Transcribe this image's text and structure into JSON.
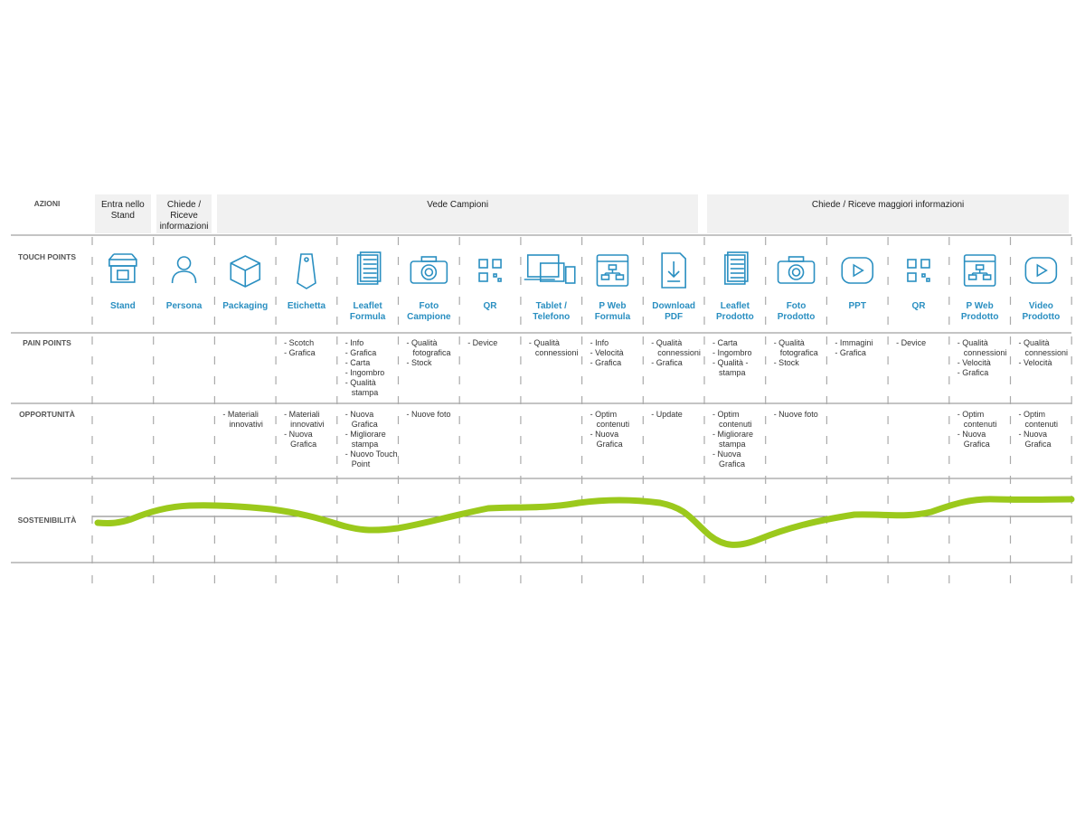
{
  "row_labels": {
    "actions": "AZIONI",
    "touch_points": "TOUCH POINTS",
    "pain_points": "PAIN POINTS",
    "opportunities": "OPPORTUNITÀ",
    "sustainability": "SOSTENIBILITÀ"
  },
  "actions": [
    "Entra nello Stand",
    "Chiede / Riceve informazioni",
    "Vede Campioni",
    "Chiede / Riceve maggiori informazioni"
  ],
  "columns": [
    {
      "touch_point": "Stand",
      "pain_points": [],
      "opportunities": []
    },
    {
      "touch_point": "Persona",
      "pain_points": [],
      "opportunities": []
    },
    {
      "touch_point": "Packaging",
      "pain_points": [],
      "opportunities": [
        "- Materiali innovativi"
      ]
    },
    {
      "touch_point": "Etichetta",
      "pain_points": [
        "- Scotch",
        "- Grafica"
      ],
      "opportunities": [
        "- Materiali innovativi",
        "- Nuova Grafica"
      ]
    },
    {
      "touch_point": "Leaflet Formula",
      "pain_points": [
        "- Info",
        "- Grafica",
        "- Carta",
        "- Ingombro",
        "- Qualità stampa"
      ],
      "opportunities": [
        "- Nuova Grafica",
        "- Migliorare stampa",
        "- Nuovo Touch Point"
      ]
    },
    {
      "touch_point": "Foto Campione",
      "pain_points": [
        "- Qualità fotografica",
        "- Stock"
      ],
      "opportunities": [
        "- Nuove foto"
      ]
    },
    {
      "touch_point": "QR",
      "pain_points": [
        "- Device"
      ],
      "opportunities": []
    },
    {
      "touch_point": "Tablet / Telefono",
      "pain_points": [
        "- Qualità connessioni"
      ],
      "opportunities": []
    },
    {
      "touch_point": "P Web Formula",
      "pain_points": [
        "- Info",
        "- Velocità",
        "- Grafica"
      ],
      "opportunities": [
        "- Optim contenuti",
        "- Nuova Grafica"
      ]
    },
    {
      "touch_point": "Download PDF",
      "pain_points": [
        "- Qualità connessioni",
        "- Grafica"
      ],
      "opportunities": [
        "- Update"
      ]
    },
    {
      "touch_point": "Leaflet Prodotto",
      "pain_points": [
        "- Carta",
        "- Ingombro",
        "- Qualità -stampa"
      ],
      "opportunities": [
        "- Optim contenuti",
        "- Migliorare stampa",
        "- Nuova Grafica"
      ]
    },
    {
      "touch_point": "Foto Prodotto",
      "pain_points": [
        "- Qualità fotografica",
        "- Stock"
      ],
      "opportunities": [
        "- Nuove foto"
      ]
    },
    {
      "touch_point": "PPT",
      "pain_points": [
        "- Immagini",
        "- Grafica"
      ],
      "opportunities": []
    },
    {
      "touch_point": "QR",
      "pain_points": [
        "- Device"
      ],
      "opportunities": []
    },
    {
      "touch_point": "P Web Prodotto",
      "pain_points": [
        "- Qualità connessioni",
        "- Velocità",
        "- Grafica"
      ],
      "opportunities": [
        "- Optim contenuti",
        "- Nuova Grafica"
      ]
    },
    {
      "touch_point": "Video Prodotto",
      "pain_points": [
        "- Qualità connessioni",
        "- Velocità"
      ],
      "opportunities": [
        "- Optim contenuti",
        "- Nuova Grafica"
      ]
    }
  ]
}
